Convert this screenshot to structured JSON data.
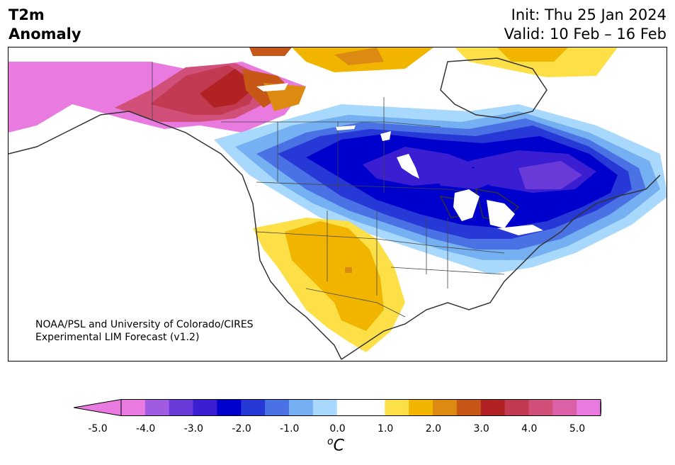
{
  "title": {
    "variable_line1": "T2m",
    "variable_line2": "Anomaly",
    "init": "Init: Thu 25 Jan 2024",
    "valid": "Valid: 10 Feb – 16 Feb"
  },
  "credit": {
    "line1": "NOAA/PSL and University of Colorado/CIRES",
    "line2": "Experimental LIM Forecast (v1.2)"
  },
  "colorbar": {
    "unit_prefix": "o",
    "unit_suffix": "C",
    "tick_labels": [
      "-5.0",
      "-4.0",
      "-3.0",
      "-2.0",
      "-1.0",
      "0.0",
      "1.0",
      "2.0",
      "3.0",
      "4.0",
      "5.0"
    ],
    "min": -5.0,
    "max": 5.0,
    "colors": [
      "#e87ae0",
      "#a15be2",
      "#6a3ad8",
      "#3b1ed2",
      "#0000cc",
      "#2638d6",
      "#4a72e4",
      "#74b0f2",
      "#a8d8fb",
      "#ffffff",
      "#ffffff",
      "#fde047",
      "#f1b500",
      "#dd8a12",
      "#c75717",
      "#b22222",
      "#c23a52",
      "#d1507a",
      "#dc60a8",
      "#e87ae0"
    ],
    "extend": "both"
  }
}
